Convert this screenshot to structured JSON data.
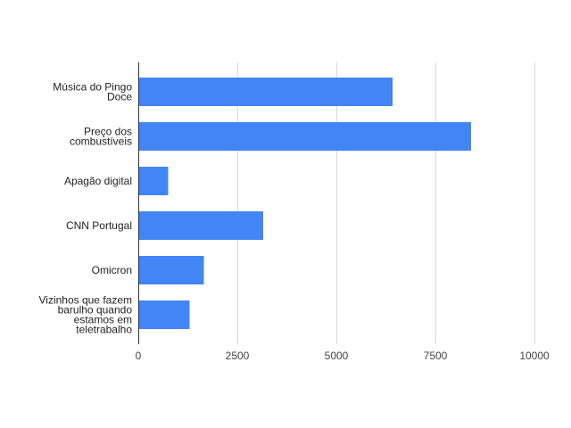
{
  "chart_data": {
    "type": "bar",
    "orientation": "horizontal",
    "title": "",
    "xlabel": "",
    "ylabel": "",
    "categories": [
      "Música do Pingo Doce",
      "Preço dos combustíveis",
      "Apagão digital",
      "CNN Portugal",
      "Omicron",
      "Vizinhos que fazem barulho quando estamos em teletrabalho"
    ],
    "category_lines": [
      [
        "Música do Pingo",
        "Doce"
      ],
      [
        "Preço dos",
        "combustíveis"
      ],
      [
        "Apagão digital"
      ],
      [
        "CNN Portugal"
      ],
      [
        "Omicron"
      ],
      [
        "Vizinhos que fazem",
        "barulho quando",
        "estamos em",
        "teletrabalho"
      ]
    ],
    "values": [
      6420,
      8400,
      750,
      3150,
      1650,
      1300
    ],
    "xlim": [
      0,
      10000
    ],
    "xticks": [
      0,
      2500,
      5000,
      7500,
      10000
    ],
    "xtick_labels": [
      "0",
      "2500",
      "5000",
      "7500",
      "10000"
    ],
    "grid": true,
    "legend": "none",
    "bar_color": "#4285f4"
  }
}
